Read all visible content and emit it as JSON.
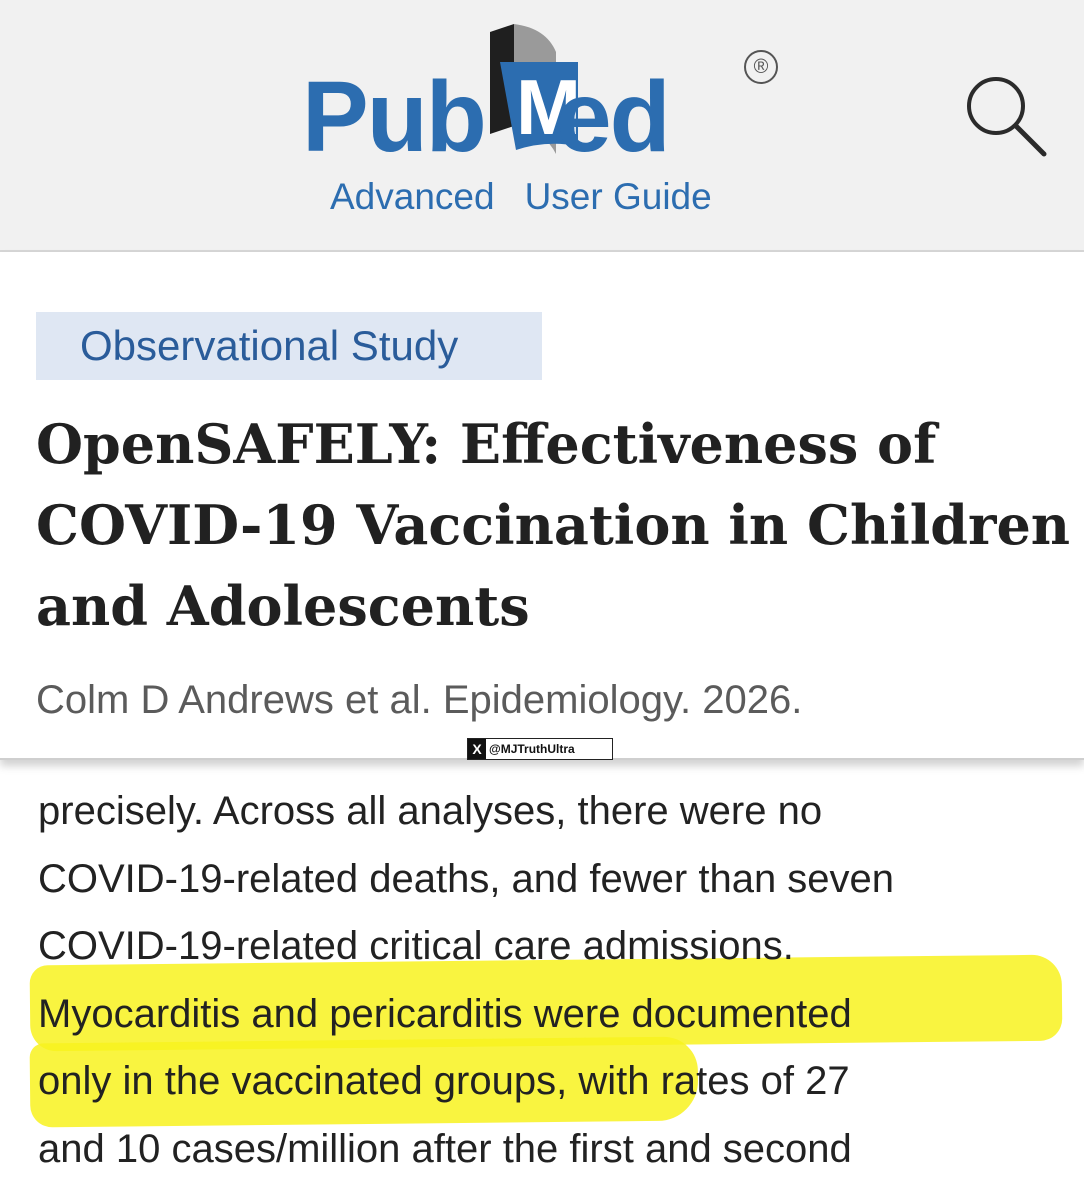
{
  "header": {
    "logo": {
      "pub_text": "Pub",
      "med_m_text": "M",
      "med_rest_text": "ed",
      "registered_mark": "®",
      "brand_color": "#2c6db0"
    },
    "nav_links": [
      "Advanced",
      "User Guide"
    ],
    "search_icon": "search-icon"
  },
  "article": {
    "type_badge": "Observational Study",
    "title_lines": [
      "OpenSAFELY: Effectiveness of",
      "COVID-19 Vaccination in Children",
      "and Adolescents"
    ],
    "citation": "Colm D Andrews et al. Epidemiology. 2026.",
    "watermark": {
      "x_logo": "X",
      "handle": "@MJTruthUltra"
    }
  },
  "abstract": {
    "lines": [
      "precisely. Across all analyses, there were no",
      "COVID-19-related deaths, and fewer than seven",
      "COVID-19-related critical care admissions.",
      "Myocarditis and pericarditis were documented",
      "only in the vaccinated groups, with rates of 27",
      "and 10 cases/million after the first and second"
    ],
    "highlight_color": "#f8f21e"
  }
}
